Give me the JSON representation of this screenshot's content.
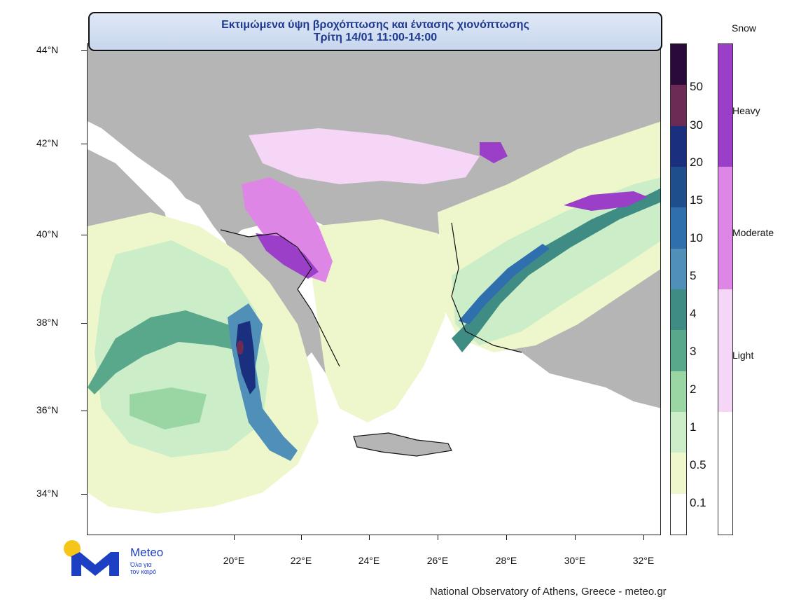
{
  "title": {
    "line1": "Εκτιμώμενα ύψη βροχόπτωσης και έντασης χιονόπτωσης",
    "line2": "Τρίτη 14/01 11:00-14:00"
  },
  "lat_labels": [
    "44°N",
    "42°N",
    "40°N",
    "38°N",
    "36°N",
    "34°N"
  ],
  "lon_labels": [
    "20°E",
    "22°E",
    "24°E",
    "26°E",
    "28°E",
    "30°E",
    "32°E"
  ],
  "rain_scale": {
    "labels": [
      "50",
      "30",
      "20",
      "15",
      "10",
      "5",
      "4",
      "3",
      "2",
      "1",
      "0.5",
      "0.1"
    ],
    "colors": [
      "#2a0a3a",
      "#6b2b55",
      "#1b2f7f",
      "#1f4e8c",
      "#2f6fae",
      "#4f8fb8",
      "#3e8c84",
      "#5aa88c",
      "#9ad6a4",
      "#cbeec8",
      "#eef6cc",
      "#ffffff"
    ]
  },
  "snow_scale": {
    "title": "Snow",
    "labels": [
      "Heavy",
      "Moderate",
      "Light"
    ],
    "colors": [
      "#9b3fc8",
      "#dd86e6",
      "#f6d6f6",
      "#ffffff"
    ]
  },
  "logo": {
    "name": "Meteo",
    "tagline_line1": "Όλα για",
    "tagline_line2": "τον καιρό"
  },
  "credit": "National Observatory of Athens, Greece - meteo.gr"
}
